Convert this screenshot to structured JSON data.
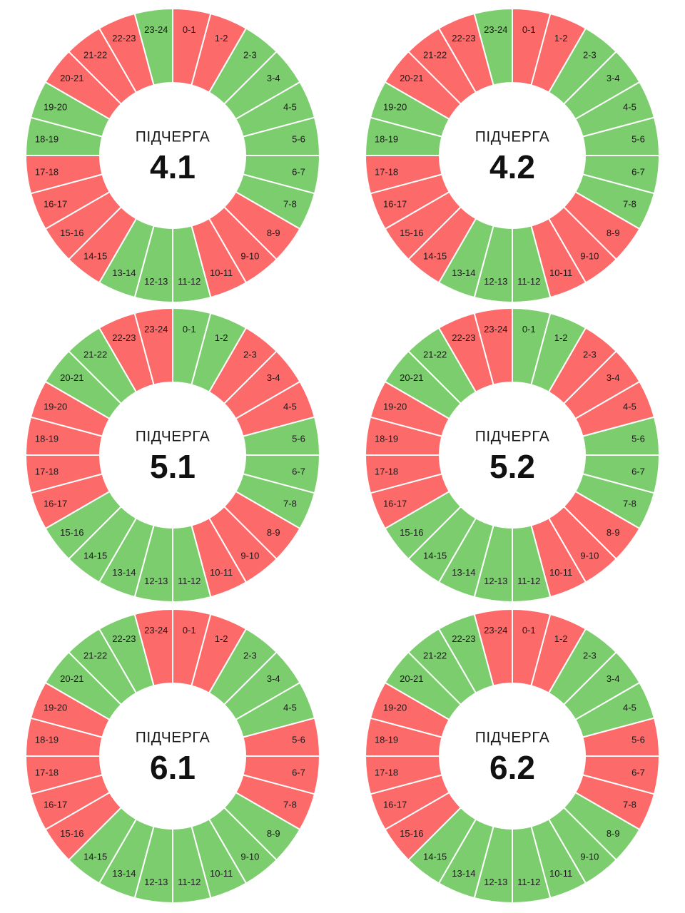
{
  "colors": {
    "on": "#7ccd6e",
    "off": "#fc6a6a",
    "border": "#ffffff"
  },
  "chart_data": [
    {
      "type": "pie",
      "caption": "ПІДЧЕРГА",
      "number": "4.1",
      "categories": [
        "0-1",
        "1-2",
        "2-3",
        "3-4",
        "4-5",
        "5-6",
        "6-7",
        "7-8",
        "8-9",
        "9-10",
        "10-11",
        "11-12",
        "12-13",
        "13-14",
        "14-15",
        "15-16",
        "16-17",
        "17-18",
        "18-19",
        "19-20",
        "20-21",
        "21-22",
        "22-23",
        "23-24"
      ],
      "states": [
        "off",
        "off",
        "on",
        "on",
        "on",
        "on",
        "on",
        "on",
        "off",
        "off",
        "off",
        "on",
        "on",
        "on",
        "off",
        "off",
        "off",
        "off",
        "on",
        "on",
        "off",
        "off",
        "off",
        "on"
      ]
    },
    {
      "type": "pie",
      "caption": "ПІДЧЕРГА",
      "number": "4.2",
      "categories": [
        "0-1",
        "1-2",
        "2-3",
        "3-4",
        "4-5",
        "5-6",
        "6-7",
        "7-8",
        "8-9",
        "9-10",
        "10-11",
        "11-12",
        "12-13",
        "13-14",
        "14-15",
        "15-16",
        "16-17",
        "17-18",
        "18-19",
        "19-20",
        "20-21",
        "21-22",
        "22-23",
        "23-24"
      ],
      "states": [
        "off",
        "off",
        "on",
        "on",
        "on",
        "on",
        "on",
        "on",
        "off",
        "off",
        "off",
        "on",
        "on",
        "on",
        "off",
        "off",
        "off",
        "off",
        "on",
        "on",
        "off",
        "off",
        "off",
        "on"
      ]
    },
    {
      "type": "pie",
      "caption": "ПІДЧЕРГА",
      "number": "5.1",
      "categories": [
        "0-1",
        "1-2",
        "2-3",
        "3-4",
        "4-5",
        "5-6",
        "6-7",
        "7-8",
        "8-9",
        "9-10",
        "10-11",
        "11-12",
        "12-13",
        "13-14",
        "14-15",
        "15-16",
        "16-17",
        "17-18",
        "18-19",
        "19-20",
        "20-21",
        "21-22",
        "22-23",
        "23-24"
      ],
      "states": [
        "on",
        "on",
        "off",
        "off",
        "off",
        "on",
        "on",
        "on",
        "off",
        "off",
        "off",
        "on",
        "on",
        "on",
        "on",
        "on",
        "off",
        "off",
        "off",
        "off",
        "on",
        "on",
        "off",
        "off"
      ]
    },
    {
      "type": "pie",
      "caption": "ПІДЧЕРГА",
      "number": "5.2",
      "categories": [
        "0-1",
        "1-2",
        "2-3",
        "3-4",
        "4-5",
        "5-6",
        "6-7",
        "7-8",
        "8-9",
        "9-10",
        "10-11",
        "11-12",
        "12-13",
        "13-14",
        "14-15",
        "15-16",
        "16-17",
        "17-18",
        "18-19",
        "19-20",
        "20-21",
        "21-22",
        "22-23",
        "23-24"
      ],
      "states": [
        "on",
        "on",
        "off",
        "off",
        "off",
        "on",
        "on",
        "on",
        "off",
        "off",
        "off",
        "on",
        "on",
        "on",
        "on",
        "on",
        "off",
        "off",
        "off",
        "off",
        "on",
        "on",
        "off",
        "off"
      ]
    },
    {
      "type": "pie",
      "caption": "ПІДЧЕРГА",
      "number": "6.1",
      "categories": [
        "0-1",
        "1-2",
        "2-3",
        "3-4",
        "4-5",
        "5-6",
        "6-7",
        "7-8",
        "8-9",
        "9-10",
        "10-11",
        "11-12",
        "12-13",
        "13-14",
        "14-15",
        "15-16",
        "16-17",
        "17-18",
        "18-19",
        "19-20",
        "20-21",
        "21-22",
        "22-23",
        "23-24"
      ],
      "states": [
        "off",
        "off",
        "on",
        "on",
        "on",
        "off",
        "off",
        "off",
        "on",
        "on",
        "on",
        "on",
        "on",
        "on",
        "on",
        "off",
        "off",
        "off",
        "off",
        "off",
        "on",
        "on",
        "on",
        "off"
      ]
    },
    {
      "type": "pie",
      "caption": "ПІДЧЕРГА",
      "number": "6.2",
      "categories": [
        "0-1",
        "1-2",
        "2-3",
        "3-4",
        "4-5",
        "5-6",
        "6-7",
        "7-8",
        "8-9",
        "9-10",
        "10-11",
        "11-12",
        "12-13",
        "13-14",
        "14-15",
        "15-16",
        "16-17",
        "17-18",
        "18-19",
        "19-20",
        "20-21",
        "21-22",
        "22-23",
        "23-24"
      ],
      "states": [
        "off",
        "off",
        "on",
        "on",
        "on",
        "off",
        "off",
        "off",
        "on",
        "on",
        "on",
        "on",
        "on",
        "on",
        "on",
        "off",
        "off",
        "off",
        "off",
        "off",
        "on",
        "on",
        "on",
        "off"
      ]
    }
  ]
}
